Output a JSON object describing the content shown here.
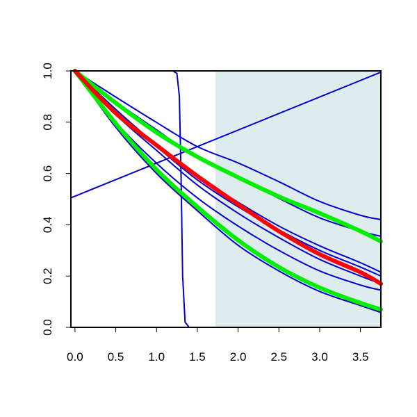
{
  "chart_data": {
    "type": "line",
    "title": "",
    "xlabel": "",
    "ylabel": "",
    "xlim": [
      -0.05,
      3.75
    ],
    "ylim": [
      0.0,
      1.0
    ],
    "x_ticks": [
      0.0,
      0.5,
      1.0,
      1.5,
      2.0,
      2.5,
      3.0,
      3.5
    ],
    "x_tick_labels": [
      "0.0",
      "0.5",
      "1.0",
      "1.5",
      "2.0",
      "2.5",
      "3.0",
      "3.5"
    ],
    "y_ticks": [
      0.0,
      0.2,
      0.4,
      0.6,
      0.8,
      1.0
    ],
    "y_tick_labels": [
      "0.0",
      "0.2",
      "0.4",
      "0.6",
      "0.8",
      "1.0"
    ],
    "grid": false,
    "legend": "none",
    "shaded_region": {
      "x_start": 1.72,
      "x_end": 3.75,
      "color": "#dfeced"
    },
    "series": [
      {
        "color": "#0000cc",
        "width": "thin",
        "kind": "step",
        "values": [
          [
            0.0,
            1.0
          ],
          [
            1.2,
            1.0
          ],
          [
            1.25,
            0.99
          ],
          [
            1.28,
            0.9
          ],
          [
            1.3,
            0.6
          ],
          [
            1.32,
            0.2
          ],
          [
            1.35,
            0.02
          ],
          [
            1.4,
            0.0
          ],
          [
            3.75,
            0.0
          ]
        ]
      },
      {
        "color": "#0000cc",
        "width": "thin",
        "kind": "line",
        "values": [
          [
            -0.05,
            0.505
          ],
          [
            3.75,
            0.995
          ]
        ]
      },
      {
        "color": "#0000cc",
        "width": "thin",
        "kind": "curve",
        "values": [
          [
            0.0,
            1.0
          ],
          [
            0.5,
            0.898
          ],
          [
            1.0,
            0.799
          ],
          [
            1.5,
            0.705
          ],
          [
            2.0,
            0.641
          ],
          [
            2.5,
            0.568
          ],
          [
            3.0,
            0.491
          ],
          [
            3.5,
            0.437
          ],
          [
            3.75,
            0.42
          ]
        ]
      },
      {
        "color": "#0000cc",
        "width": "thin",
        "kind": "curve",
        "values": [
          [
            0.0,
            1.0
          ],
          [
            0.5,
            0.88
          ],
          [
            1.0,
            0.77
          ],
          [
            1.5,
            0.66
          ],
          [
            2.0,
            0.585
          ],
          [
            2.5,
            0.503
          ],
          [
            3.0,
            0.427
          ],
          [
            3.5,
            0.375
          ],
          [
            3.75,
            0.355
          ]
        ]
      },
      {
        "color": "#0000cc",
        "width": "thin",
        "kind": "curve",
        "values": [
          [
            0.0,
            1.0
          ],
          [
            0.5,
            0.85
          ],
          [
            1.0,
            0.712
          ],
          [
            1.5,
            0.59
          ],
          [
            2.0,
            0.488
          ],
          [
            2.5,
            0.395
          ],
          [
            3.0,
            0.318
          ],
          [
            3.5,
            0.252
          ],
          [
            3.75,
            0.215
          ]
        ]
      },
      {
        "color": "#0000cc",
        "width": "thin",
        "kind": "curve",
        "values": [
          [
            0.0,
            1.0
          ],
          [
            0.5,
            0.84
          ],
          [
            1.0,
            0.705
          ],
          [
            1.5,
            0.575
          ],
          [
            2.0,
            0.47
          ],
          [
            2.5,
            0.38
          ],
          [
            3.0,
            0.3
          ],
          [
            3.5,
            0.235
          ],
          [
            3.75,
            0.2
          ]
        ]
      },
      {
        "color": "#0000cc",
        "width": "thin",
        "kind": "curve",
        "values": [
          [
            0.0,
            1.0
          ],
          [
            0.5,
            0.83
          ],
          [
            1.0,
            0.69
          ],
          [
            1.5,
            0.555
          ],
          [
            2.0,
            0.445
          ],
          [
            2.5,
            0.35
          ],
          [
            3.0,
            0.265
          ],
          [
            3.5,
            0.2
          ],
          [
            3.75,
            0.17
          ]
        ]
      },
      {
        "color": "#0000cc",
        "width": "thin",
        "kind": "curve",
        "values": [
          [
            0.0,
            1.0
          ],
          [
            0.5,
            0.8
          ],
          [
            1.0,
            0.64
          ],
          [
            1.5,
            0.505
          ],
          [
            2.0,
            0.395
          ],
          [
            2.5,
            0.3
          ],
          [
            3.0,
            0.22
          ],
          [
            3.5,
            0.165
          ],
          [
            3.75,
            0.145
          ]
        ]
      },
      {
        "color": "#0000cc",
        "width": "thin",
        "kind": "curve",
        "values": [
          [
            0.0,
            1.0
          ],
          [
            0.5,
            0.78
          ],
          [
            1.0,
            0.6
          ],
          [
            1.5,
            0.455
          ],
          [
            2.0,
            0.32
          ],
          [
            2.5,
            0.22
          ],
          [
            3.0,
            0.14
          ],
          [
            3.5,
            0.085
          ],
          [
            3.75,
            0.058
          ]
        ]
      },
      {
        "color": "#00ee00",
        "width": "thick",
        "kind": "curve",
        "values": [
          [
            0.0,
            1.0
          ],
          [
            0.5,
            0.875
          ],
          [
            1.0,
            0.76
          ],
          [
            1.5,
            0.665
          ],
          [
            2.0,
            0.585
          ],
          [
            2.5,
            0.51
          ],
          [
            3.0,
            0.445
          ],
          [
            3.5,
            0.375
          ],
          [
            3.75,
            0.335
          ]
        ]
      },
      {
        "color": "#00ee00",
        "width": "thick",
        "kind": "curve",
        "values": [
          [
            0.0,
            1.0
          ],
          [
            0.5,
            0.795
          ],
          [
            1.0,
            0.615
          ],
          [
            1.5,
            0.47
          ],
          [
            2.0,
            0.34
          ],
          [
            2.5,
            0.235
          ],
          [
            3.0,
            0.155
          ],
          [
            3.5,
            0.095
          ],
          [
            3.75,
            0.07
          ]
        ]
      },
      {
        "color": "#ff0000",
        "width": "thick",
        "kind": "curve",
        "values": [
          [
            0.0,
            1.0
          ],
          [
            0.5,
            0.835
          ],
          [
            1.0,
            0.71
          ],
          [
            1.5,
            0.59
          ],
          [
            2.0,
            0.48
          ],
          [
            2.5,
            0.375
          ],
          [
            3.0,
            0.285
          ],
          [
            3.5,
            0.215
          ],
          [
            3.75,
            0.17
          ]
        ]
      }
    ]
  }
}
